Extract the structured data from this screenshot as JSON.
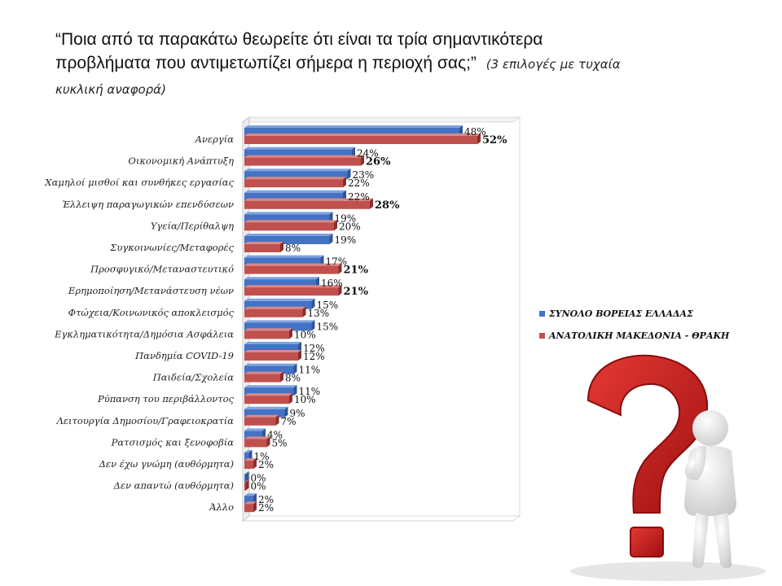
{
  "title": "“Ποια από τα παρακάτω θεωρείτε ότι είναι τα τρία σημαντικότερα προβλήματα που αντιμετωπίζει σήμερα η περιοχή σας;”",
  "subtitle": "(3 επιλογές με τυχαία κυκλική αναφορά)",
  "colors": {
    "series1": "#4472C4",
    "series2": "#C0504D"
  },
  "chart_data": {
    "type": "bar",
    "orientation": "horizontal",
    "value_suffix": "%",
    "xlim": [
      0,
      60
    ],
    "grid": false,
    "legend_position": "right",
    "categories": [
      "Ανεργία",
      "Οικονομική Ανάπτυξη",
      "Χαμηλοί μισθοί και συνθήκες εργασίας",
      "Έλλειψη παραγωγικών επενδύσεων",
      "Υγεία/Περίθαλψη",
      "Συγκοινωνίες/Μεταφορές",
      "Προσφυγικό/Μεταναστευτικό",
      "Ερημοποίηση/Μετανάστευση νέων",
      "Φτώχεια/Κοινωνικός αποκλεισμός",
      "Εγκληματικότητα/Δημόσια Ασφάλεια",
      "Πανδημία COVID-19",
      "Παιδεία/Σχολεία",
      "Ρύπανση του περιβάλλοντος",
      "Λειτουργία Δημοσίου/Γραφειοκρατία",
      "Ρατσισμός και ξενοφοβία",
      "Δεν έχω γνώμη (αυθόρμητα)",
      "Δεν απαντώ (αυθόρμητα)",
      "Άλλο"
    ],
    "series": [
      {
        "name": "ΣΥΝΟΛΟ ΒΟΡΕΙΑΣ ΕΛΛΑΔΑΣ",
        "values": [
          48,
          24,
          23,
          22,
          19,
          19,
          17,
          16,
          15,
          15,
          12,
          11,
          11,
          9,
          4,
          1,
          0,
          2
        ]
      },
      {
        "name": "ΑΝΑΤΟΛΙΚΗ ΜΑΚΕΔΟΝΙΑ - ΘΡΑΚΗ",
        "values": [
          52,
          26,
          22,
          28,
          20,
          8,
          21,
          21,
          13,
          10,
          12,
          8,
          10,
          7,
          5,
          2,
          0,
          2
        ],
        "bold_indices": [
          0,
          1,
          3,
          6,
          7
        ]
      }
    ]
  }
}
